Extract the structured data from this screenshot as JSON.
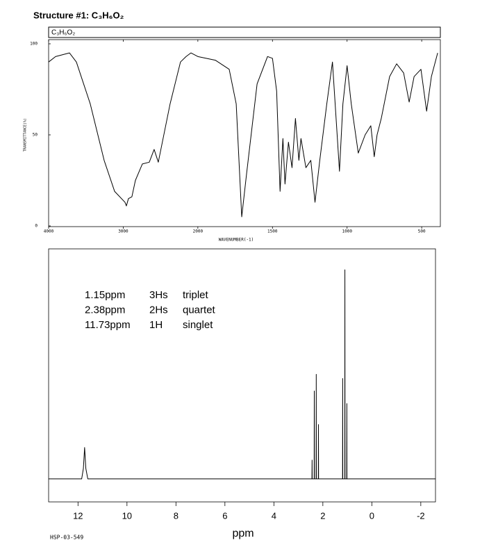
{
  "page": {
    "title": "Structure #1: C₃H₆O₂",
    "footer": "HSP-03-549"
  },
  "chart_data": [
    {
      "type": "line",
      "formula": "C₃H₆O₂",
      "x_label": "WAVENUMBER(-1)",
      "y_label": "TRANSMITTANCE(%)",
      "color": "#000000",
      "xlim": [
        4000,
        375
      ],
      "xticks": [
        4000,
        3000,
        2000,
        1500,
        1000,
        500
      ],
      "ylim": [
        0,
        100
      ],
      "yticks": [
        0,
        50,
        100
      ],
      "x": [
        4000,
        3907,
        3721,
        3628,
        3442,
        3256,
        3116,
        2977,
        2958,
        2930,
        2884,
        2837,
        2744,
        2651,
        2586,
        2530,
        2372,
        2233,
        2158,
        2093,
        2000,
        1883,
        1790,
        1743,
        1706,
        1673,
        1603,
        1533,
        1500,
        1472,
        1449,
        1430,
        1416,
        1393,
        1369,
        1346,
        1323,
        1309,
        1276,
        1243,
        1215,
        1183,
        1136,
        1098,
        1065,
        1051,
        1028,
        1000,
        972,
        925,
        879,
        841,
        818,
        799,
        771,
        715,
        668,
        621,
        584,
        551,
        505,
        467,
        435,
        393
      ],
      "values": [
        90,
        93,
        95,
        90,
        67,
        36,
        19,
        13,
        11,
        15,
        16,
        25,
        34,
        35,
        42,
        35,
        67,
        90,
        93,
        95,
        93,
        91,
        86,
        67,
        5,
        29,
        78,
        93,
        92,
        74,
        19,
        48,
        23,
        46,
        32,
        59,
        36,
        48,
        32,
        36,
        13,
        36,
        67,
        90,
        48,
        30,
        67,
        88,
        67,
        40,
        50,
        55,
        38,
        50,
        59,
        82,
        89,
        84,
        68,
        82,
        86,
        63,
        82,
        95
      ]
    },
    {
      "type": "line",
      "x_label": "ppm",
      "color": "#000000",
      "xlim": [
        13.2,
        -2.6
      ],
      "xticks": [
        12,
        10,
        8,
        6,
        4,
        2,
        0,
        -2
      ],
      "ylim": [
        -11,
        110
      ],
      "x": [
        13.2,
        11.85,
        11.78,
        11.73,
        11.68,
        11.6,
        2.5,
        2.445,
        2.44,
        2.435,
        2.355,
        2.35,
        2.345,
        2.275,
        2.27,
        2.265,
        2.185,
        2.18,
        2.175,
        2.1,
        1.25,
        1.195,
        1.19,
        1.185,
        1.105,
        1.1,
        1.095,
        1.025,
        1.02,
        1.015,
        0.95,
        -2.6
      ],
      "values": [
        0,
        0,
        5,
        15,
        5,
        0,
        0,
        0,
        9,
        0,
        0,
        42,
        0,
        0,
        50,
        0,
        0,
        26,
        0,
        0,
        0,
        0,
        48,
        0,
        0,
        100,
        0,
        0,
        36,
        0,
        0,
        0
      ],
      "annotations": [
        [
          "1.15ppm",
          "3Hs",
          "triplet"
        ],
        [
          "2.38ppm",
          "2Hs",
          "quartet"
        ],
        [
          "11.73ppm",
          "1H",
          "singlet"
        ]
      ]
    }
  ]
}
